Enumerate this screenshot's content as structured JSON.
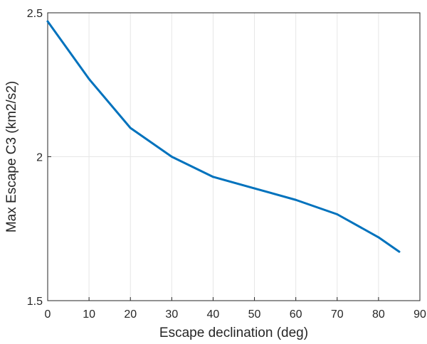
{
  "chart_data": {
    "type": "line",
    "title": "",
    "xlabel": "Escape declination (deg)",
    "ylabel": "Max Escape C3 (km2/s2)",
    "xlim": [
      0,
      90
    ],
    "ylim": [
      1.5,
      2.5
    ],
    "grid": true,
    "legend": "none",
    "x_ticks": [
      {
        "value": 0,
        "label": "0"
      },
      {
        "value": 10,
        "label": "10"
      },
      {
        "value": 20,
        "label": "20"
      },
      {
        "value": 30,
        "label": "30"
      },
      {
        "value": 40,
        "label": "40"
      },
      {
        "value": 50,
        "label": "50"
      },
      {
        "value": 60,
        "label": "60"
      },
      {
        "value": 70,
        "label": "70"
      },
      {
        "value": 80,
        "label": "80"
      },
      {
        "value": 90,
        "label": "90"
      }
    ],
    "y_ticks": [
      {
        "value": 1.5,
        "label": "1.5"
      },
      {
        "value": 2.0,
        "label": "2"
      },
      {
        "value": 2.5,
        "label": "2.5"
      }
    ],
    "series": [
      {
        "color": "#0072BD",
        "x": [
          0,
          10,
          20,
          30,
          40,
          50,
          60,
          70,
          80,
          85
        ],
        "y": [
          2.47,
          2.27,
          2.1,
          2.0,
          1.93,
          1.89,
          1.85,
          1.8,
          1.72,
          1.67
        ]
      }
    ]
  }
}
